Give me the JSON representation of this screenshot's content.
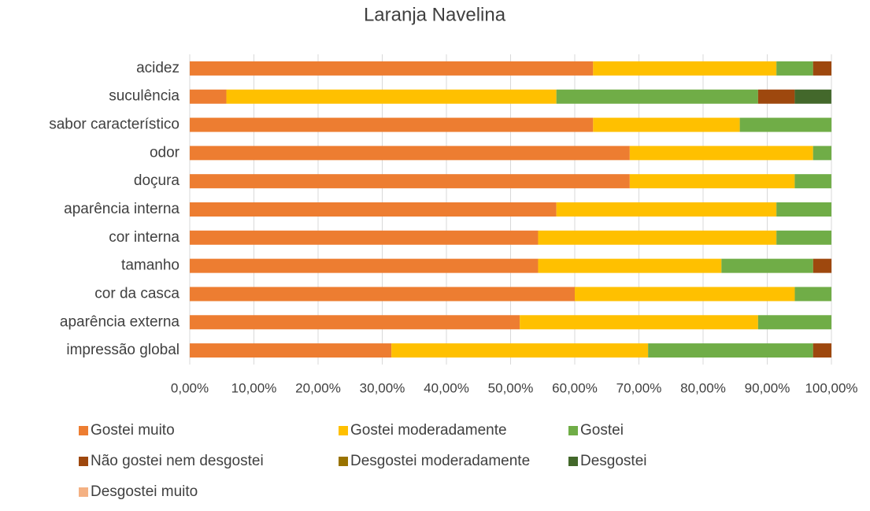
{
  "chart_data": {
    "type": "stacked_bar_horizontal",
    "title": "Laranja Navelina",
    "categories": [
      "acidez",
      "suculência",
      "sabor característico",
      "odor",
      "doçura",
      "aparência interna",
      "cor interna",
      "tamanho",
      "cor da casca",
      "aparência externa",
      "impressão global"
    ],
    "series": [
      {
        "name": "Gostei muito",
        "color": "#ED7D31",
        "values": [
          62.86,
          5.71,
          62.86,
          68.57,
          68.57,
          57.14,
          54.29,
          54.29,
          60.0,
          51.43,
          31.43
        ]
      },
      {
        "name": "Gostei moderadamente",
        "color": "#FFC000",
        "values": [
          28.57,
          51.43,
          22.86,
          28.57,
          25.71,
          34.29,
          37.14,
          28.57,
          34.29,
          37.14,
          40.0
        ]
      },
      {
        "name": "Gostei",
        "color": "#70AD47",
        "values": [
          5.71,
          31.43,
          14.29,
          2.86,
          5.71,
          8.57,
          8.57,
          14.29,
          5.71,
          11.43,
          25.71
        ]
      },
      {
        "name": "Não gostei nem desgostei",
        "color": "#9E480E",
        "values": [
          2.86,
          5.71,
          0,
          0,
          0,
          0,
          0,
          2.86,
          0,
          0,
          2.86
        ]
      },
      {
        "name": "Desgostei moderadamente",
        "color": "#997300",
        "values": [
          0,
          0,
          0,
          0,
          0,
          0,
          0,
          0,
          0,
          0,
          0
        ]
      },
      {
        "name": "Desgostei",
        "color": "#43682B",
        "values": [
          0,
          5.71,
          0,
          0,
          0,
          0,
          0,
          0,
          0,
          0,
          0
        ]
      },
      {
        "name": "Desgostei muito",
        "color": "#F4B183",
        "values": [
          0,
          0,
          0,
          0,
          0,
          0,
          0,
          0,
          0,
          0,
          0
        ]
      }
    ],
    "xlim": [
      0,
      100
    ],
    "xticks": [
      {
        "value": 0,
        "label": "0,00%"
      },
      {
        "value": 10,
        "label": "10,00%"
      },
      {
        "value": 20,
        "label": "20,00%"
      },
      {
        "value": 30,
        "label": "30,00%"
      },
      {
        "value": 40,
        "label": "40,00%"
      },
      {
        "value": 50,
        "label": "50,00%"
      },
      {
        "value": 60,
        "label": "60,00%"
      },
      {
        "value": 70,
        "label": "70,00%"
      },
      {
        "value": 80,
        "label": "80,00%"
      },
      {
        "value": 90,
        "label": "90,00%"
      },
      {
        "value": 100,
        "label": "100,00%"
      }
    ],
    "grid": true,
    "legend": "bottom"
  }
}
